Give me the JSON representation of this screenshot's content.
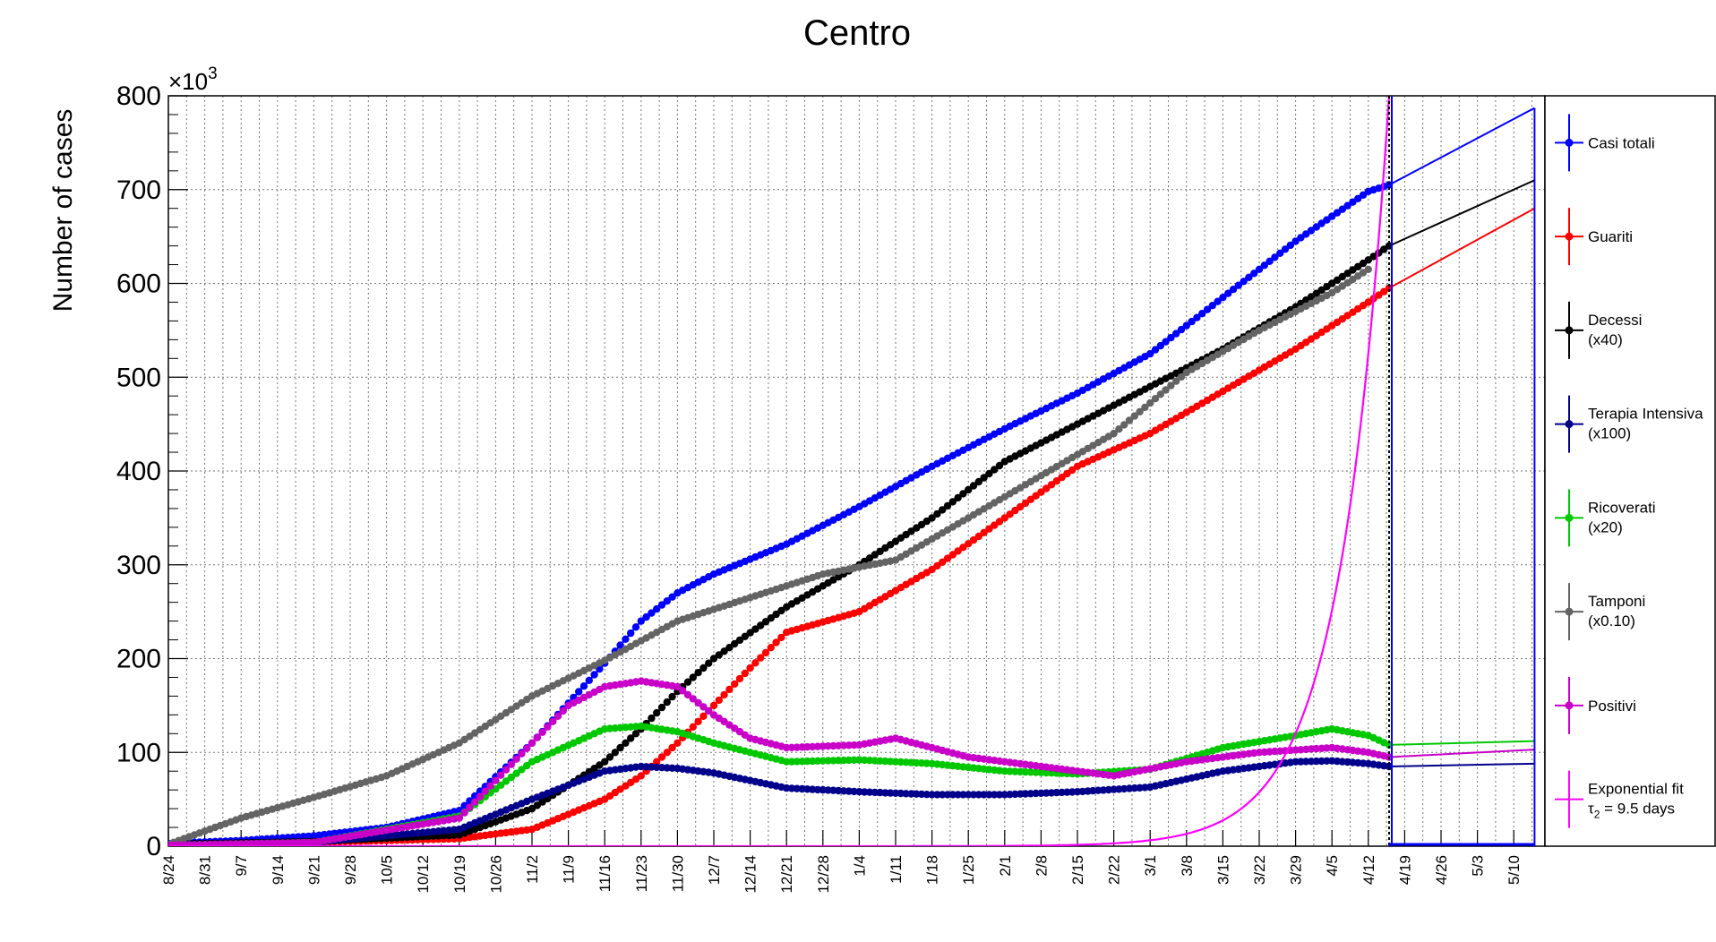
{
  "chart_data": {
    "type": "line",
    "title": "Centro",
    "ylabel": "Number of cases",
    "yscale_label": "×10",
    "yscale_exp": "3",
    "ylim": [
      0,
      800
    ],
    "yticks": [
      "0",
      "100",
      "200",
      "300",
      "400",
      "500",
      "600",
      "700",
      "800"
    ],
    "xlim_days": [
      0,
      265
    ],
    "grid": true,
    "legend_position": "right",
    "x_labels": [
      "8/24",
      "8/31",
      "9/7",
      "9/14",
      "9/21",
      "9/28",
      "10/5",
      "10/12",
      "10/19",
      "10/26",
      "11/2",
      "11/9",
      "11/16",
      "11/23",
      "11/30",
      "12/7",
      "12/14",
      "12/21",
      "12/28",
      "1/4",
      "1/11",
      "1/18",
      "1/25",
      "2/1",
      "2/8",
      "2/15",
      "2/22",
      "3/1",
      "3/8",
      "3/15",
      "3/22",
      "3/29",
      "4/5",
      "4/12",
      "4/19",
      "4/26",
      "5/3",
      "5/10"
    ],
    "series": [
      {
        "name": "Casi totali",
        "color": "#0000ff",
        "marker": true,
        "x": [
          "8/24",
          "9/7",
          "9/21",
          "10/5",
          "10/19",
          "11/2",
          "11/16",
          "11/23",
          "11/30",
          "12/7",
          "12/21",
          "1/4",
          "1/18",
          "2/1",
          "2/15",
          "3/1",
          "3/15",
          "3/29",
          "4/12",
          "4/16",
          "5/14"
        ],
        "y": [
          3,
          6,
          11,
          20,
          38,
          110,
          195,
          240,
          270,
          290,
          322,
          362,
          405,
          445,
          483,
          525,
          585,
          645,
          698,
          705,
          787
        ]
      },
      {
        "name": "Guariti",
        "color": "#ff0000",
        "marker": true,
        "x": [
          "8/24",
          "9/21",
          "10/19",
          "11/2",
          "11/16",
          "11/23",
          "11/30",
          "12/7",
          "12/14",
          "12/21",
          "1/4",
          "1/18",
          "2/1",
          "2/15",
          "3/1",
          "3/15",
          "3/29",
          "4/12",
          "4/16",
          "5/14"
        ],
        "y": [
          2,
          4,
          8,
          18,
          50,
          75,
          110,
          150,
          190,
          228,
          250,
          295,
          350,
          405,
          440,
          485,
          530,
          580,
          595,
          680
        ]
      },
      {
        "name": "Decessi",
        "note": "(x40)",
        "color": "#000000",
        "marker": true,
        "x": [
          "8/24",
          "9/21",
          "10/19",
          "11/2",
          "11/16",
          "11/23",
          "11/30",
          "12/7",
          "12/21",
          "1/4",
          "1/18",
          "2/1",
          "2/15",
          "3/1",
          "3/15",
          "3/29",
          "4/12",
          "4/16",
          "5/14"
        ],
        "y": [
          2,
          5,
          12,
          40,
          90,
          125,
          165,
          200,
          255,
          300,
          350,
          410,
          450,
          490,
          530,
          575,
          625,
          640,
          710
        ]
      },
      {
        "name": "Terapia Intensiva",
        "note": "(x100)",
        "color": "#00008b",
        "marker": true,
        "x": [
          "8/24",
          "9/21",
          "10/19",
          "11/2",
          "11/16",
          "11/23",
          "11/30",
          "12/7",
          "12/21",
          "1/4",
          "1/18",
          "2/1",
          "2/15",
          "3/1",
          "3/15",
          "3/29",
          "4/5",
          "4/12",
          "4/16",
          "5/14"
        ],
        "y": [
          1,
          4,
          18,
          50,
          80,
          85,
          83,
          78,
          62,
          58,
          55,
          55,
          58,
          63,
          80,
          90,
          91,
          88,
          85,
          88
        ]
      },
      {
        "name": "Ricoverati",
        "note": "(x20)",
        "color": "#00c800",
        "marker": true,
        "x": [
          "8/24",
          "9/21",
          "10/19",
          "11/2",
          "11/16",
          "11/23",
          "11/30",
          "12/7",
          "12/21",
          "1/4",
          "1/18",
          "2/1",
          "2/15",
          "3/1",
          "3/15",
          "3/29",
          "4/5",
          "4/12",
          "4/16",
          "5/14"
        ],
        "y": [
          1,
          4,
          32,
          90,
          125,
          128,
          122,
          110,
          90,
          92,
          88,
          80,
          77,
          82,
          105,
          118,
          125,
          118,
          108,
          112
        ]
      },
      {
        "name": "Tamponi",
        "note": "(x0.10)",
        "color": "#646464",
        "marker": true,
        "x": [
          "8/24",
          "9/7",
          "9/21",
          "10/5",
          "10/19",
          "11/2",
          "11/16",
          "11/30",
          "12/14",
          "12/28",
          "1/11",
          "1/25",
          "2/8",
          "2/22",
          "3/8",
          "3/22",
          "4/5",
          "4/12"
        ],
        "y": [
          2,
          30,
          52,
          75,
          110,
          160,
          198,
          240,
          265,
          290,
          305,
          350,
          395,
          440,
          505,
          550,
          590,
          615
        ]
      },
      {
        "name": "Positivi",
        "color": "#c800c8",
        "marker": true,
        "x": [
          "8/24",
          "9/21",
          "10/19",
          "11/2",
          "11/9",
          "11/16",
          "11/23",
          "11/30",
          "12/7",
          "12/14",
          "12/21",
          "1/4",
          "1/11",
          "1/25",
          "2/8",
          "2/22",
          "3/8",
          "3/22",
          "4/5",
          "4/12",
          "4/16",
          "5/14"
        ],
        "y": [
          1,
          4,
          30,
          110,
          150,
          170,
          176,
          170,
          140,
          115,
          105,
          108,
          115,
          95,
          85,
          75,
          90,
          100,
          105,
          100,
          95,
          103
        ]
      },
      {
        "name": "Exponential fit",
        "color": "#ff00ff",
        "marker": false,
        "fit_label_tau": "τ",
        "fit_label_sub": "2",
        "fit_label_rest": " = 9.5 days",
        "tau_days": 9.5
      }
    ]
  }
}
